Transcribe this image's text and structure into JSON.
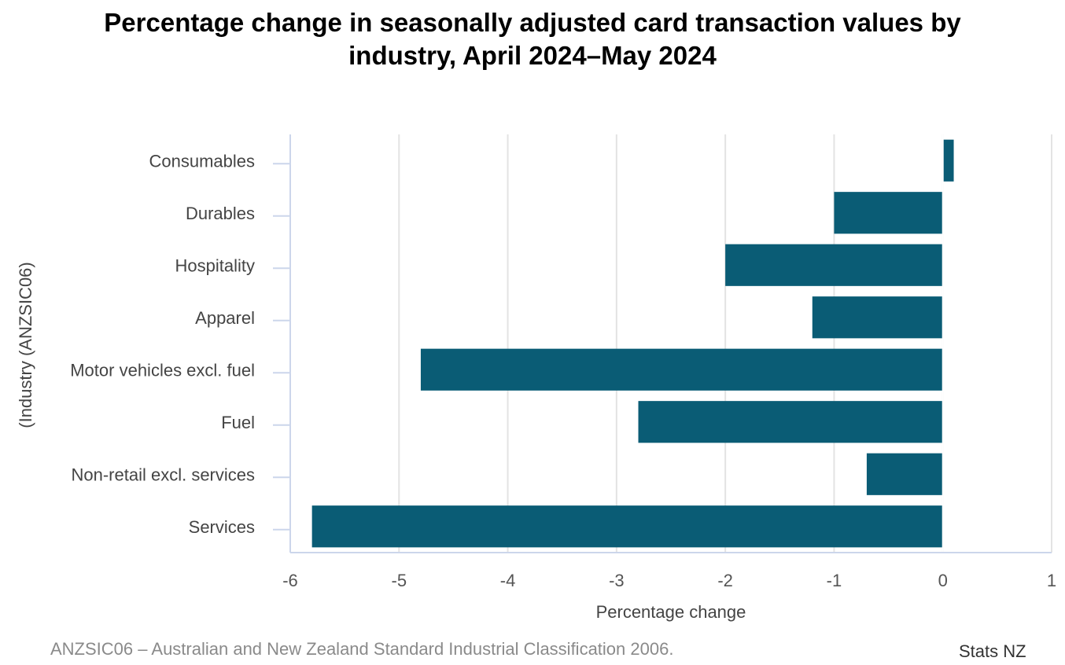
{
  "chart_data": {
    "type": "bar",
    "orientation": "horizontal",
    "title_lines": [
      "Percentage change in seasonally adjusted card transaction values by",
      "industry, April 2024–May 2024"
    ],
    "categories": [
      "Consumables",
      "Durables",
      "Hospitality",
      "Apparel",
      "Motor vehicles excl. fuel",
      "Fuel",
      "Non-retail excl. services",
      "Services"
    ],
    "values": [
      0.1,
      -1.0,
      -2.0,
      -1.2,
      -4.8,
      -2.8,
      -0.7,
      -5.8
    ],
    "xlabel": "Percentage change",
    "ylabel": "(Industry (ANZSIC06)",
    "xlim": [
      -6,
      1
    ],
    "xticks": [
      "-6",
      "-5",
      "-4",
      "-3",
      "-2",
      "-1",
      "0",
      "1"
    ],
    "bar_color": "#0a5c75",
    "grid": true,
    "legend": false
  },
  "footnote": "ANZSIC06 – Australian and New Zealand Standard Industrial Classification 2006.",
  "credit": "Stats NZ"
}
